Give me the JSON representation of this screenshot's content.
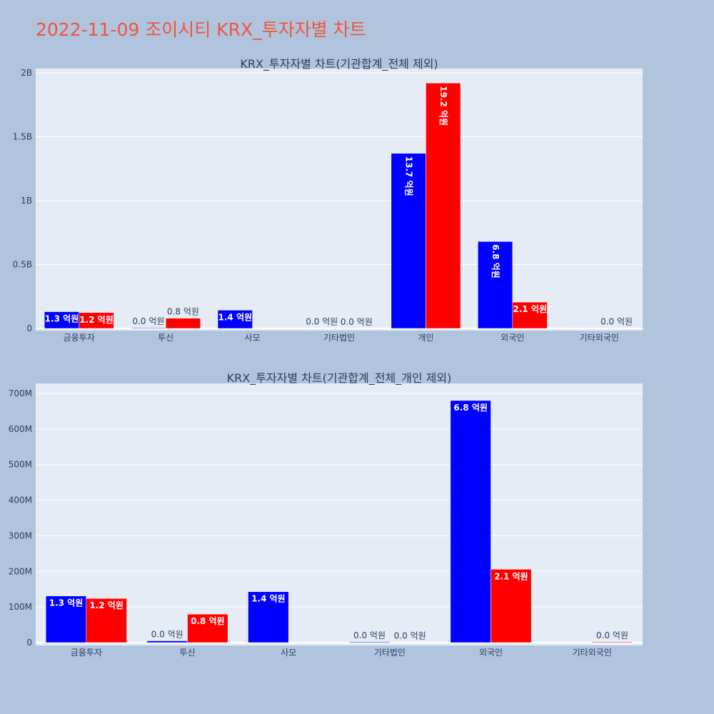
{
  "page": {
    "title": "2022-11-09 조이시티 KRX_투자자별 차트",
    "background": "#b0c4de",
    "title_color": "#ef553b"
  },
  "colors": {
    "series_a": "#0000ff",
    "series_b": "#ff0000",
    "plot_bg": "#e5ecf6"
  },
  "chart_data": [
    {
      "type": "bar",
      "title": "KRX_투자자별 차트(기관합계_전체 제외)",
      "categories": [
        "금융투자",
        "투신",
        "사모",
        "기타법인",
        "개인",
        "외국인",
        "기타외국인"
      ],
      "ylim": [
        0,
        2000000000
      ],
      "yticks": [
        0,
        500000000,
        1000000000,
        1500000000,
        2000000000
      ],
      "ytick_labels": [
        "0",
        "0.5B",
        "1B",
        "1.5B",
        "2B"
      ],
      "series": [
        {
          "color": "#0000ff",
          "values": [
            131000000,
            5000000,
            143000000,
            2000000,
            1370000000,
            680000000,
            1000000
          ],
          "labels": [
            "1.3 억원",
            "0.0 억원",
            "1.4 억원",
            "0.0 억원",
            "13.7 억원",
            "6.8 억원",
            ""
          ]
        },
        {
          "color": "#ff0000",
          "values": [
            124000000,
            80000000,
            0,
            1000000,
            1920000000,
            206000000,
            2000000
          ],
          "labels": [
            "1.2 억원",
            "0.8 억원",
            "",
            "0.0 억원",
            "19.2 억원",
            "2.1 억원",
            "0.0 억원"
          ]
        }
      ]
    },
    {
      "type": "bar",
      "title": "KRX_투자자별 차트(기관합계_전체_개인 제외)",
      "categories": [
        "금융투자",
        "투신",
        "사모",
        "기타법인",
        "외국인",
        "기타외국인"
      ],
      "ylim": [
        0,
        710000000
      ],
      "yticks": [
        0,
        100000000,
        200000000,
        300000000,
        400000000,
        500000000,
        600000000,
        700000000
      ],
      "ytick_labels": [
        "0",
        "100M",
        "200M",
        "300M",
        "400M",
        "500M",
        "600M",
        "700M"
      ],
      "series": [
        {
          "color": "#0000ff",
          "values": [
            131000000,
            5000000,
            143000000,
            2000000,
            680000000,
            1000000
          ],
          "labels": [
            "1.3 억원",
            "0.0 억원",
            "1.4 억원",
            "0.0 억원",
            "6.8 억원",
            ""
          ]
        },
        {
          "color": "#ff0000",
          "values": [
            124000000,
            80000000,
            0,
            1000000,
            206000000,
            2000000
          ],
          "labels": [
            "1.2 억원",
            "0.8 억원",
            "",
            "0.0 억원",
            "2.1 억원",
            "0.0 억원"
          ]
        }
      ]
    }
  ]
}
